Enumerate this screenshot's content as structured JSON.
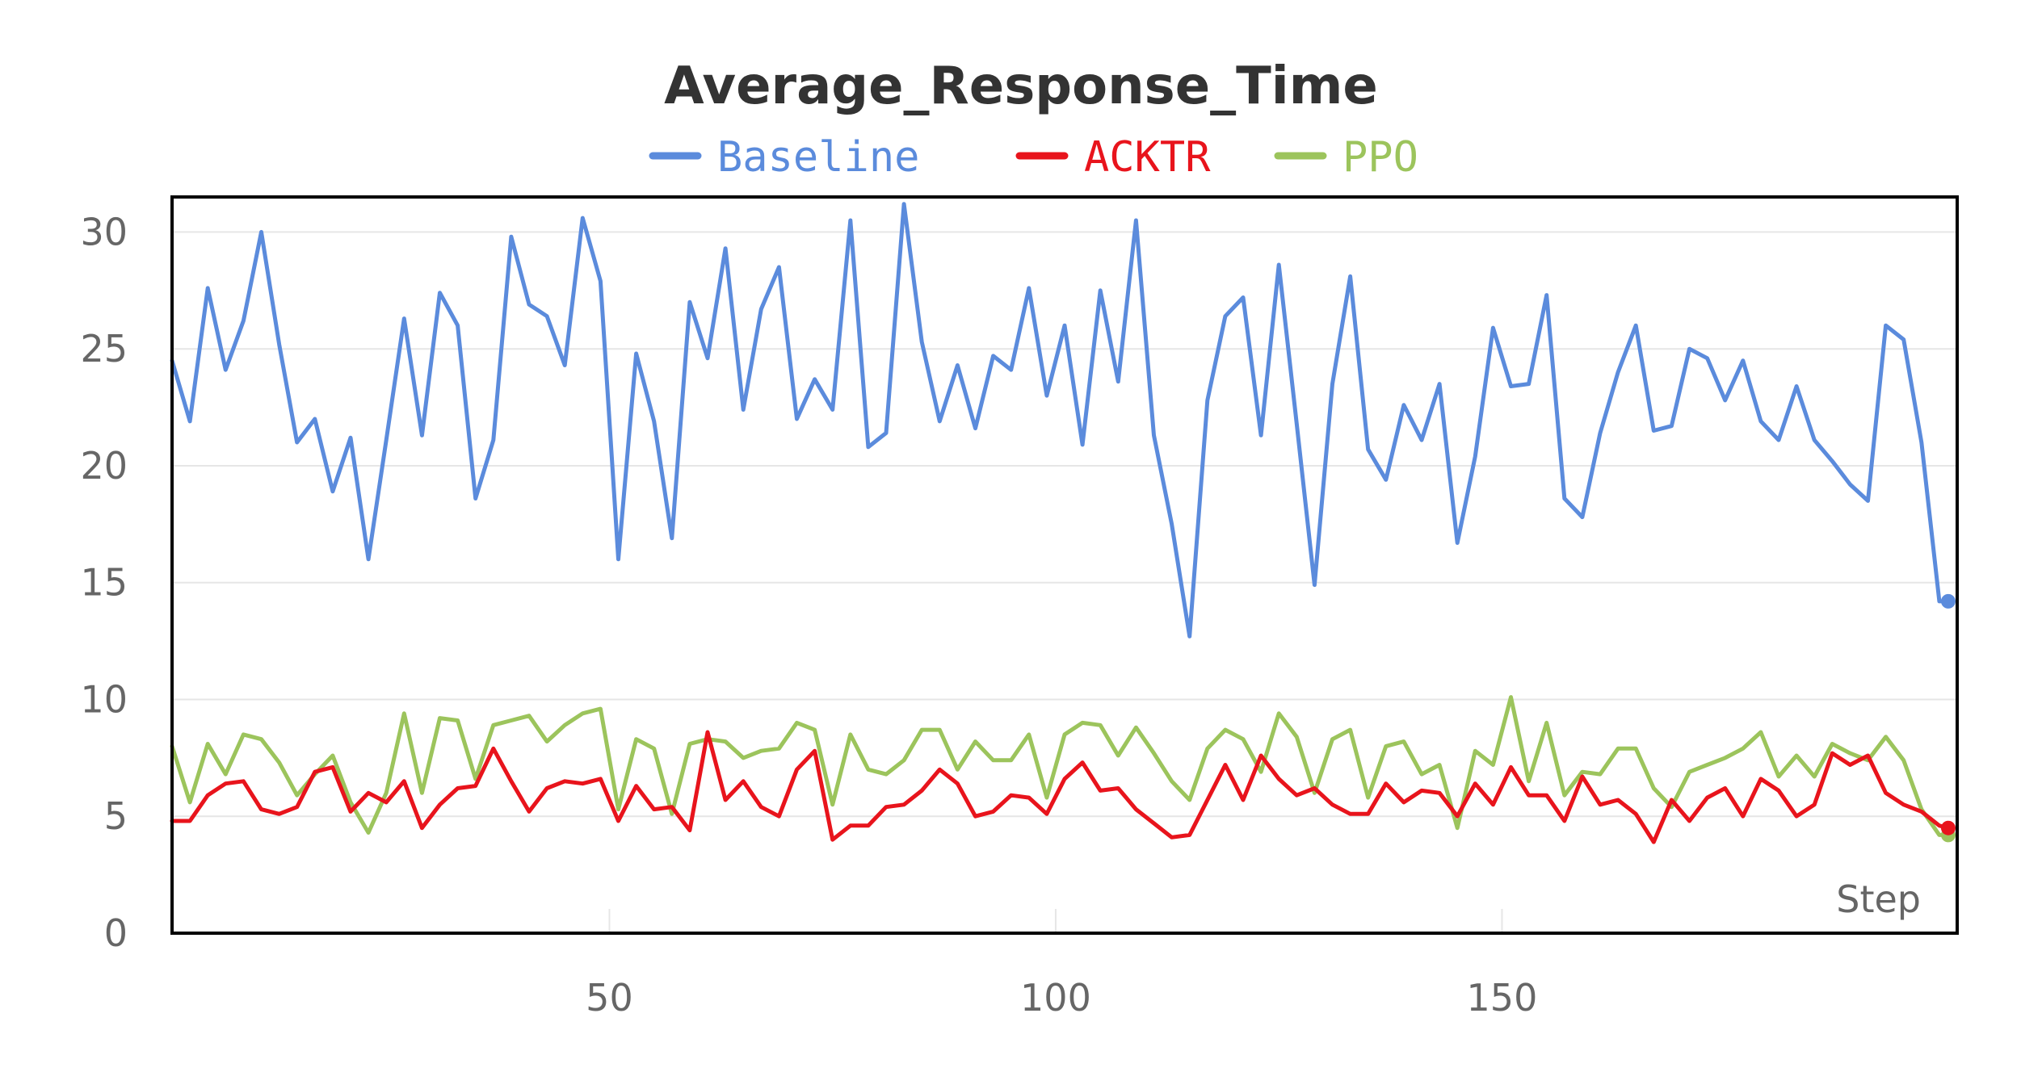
{
  "chart_data": {
    "type": "line",
    "title": "Average_Response_Time",
    "xlabel": "Step",
    "ylabel": "",
    "xlim": [
      1,
      201
    ],
    "ylim": [
      0,
      31.5
    ],
    "xticks": [
      50,
      100,
      150
    ],
    "yticks": [
      0,
      5,
      10,
      15,
      20,
      25,
      30
    ],
    "grid": true,
    "legend": "top-center",
    "series": [
      {
        "name": "Baseline",
        "color": "#5b8bdc",
        "x": [
          1,
          3,
          5,
          7,
          9,
          11,
          13,
          15,
          17,
          19,
          21,
          23,
          25,
          27,
          29,
          31,
          33,
          35,
          37,
          39,
          41,
          43,
          45,
          47,
          49,
          51,
          53,
          55,
          57,
          59,
          61,
          63,
          65,
          67,
          69,
          71,
          73,
          75,
          77,
          79,
          81,
          83,
          85,
          87,
          89,
          91,
          93,
          95,
          97,
          99,
          101,
          103,
          105,
          107,
          109,
          111,
          113,
          115,
          117,
          119,
          121,
          123,
          125,
          127,
          129,
          131,
          133,
          135,
          137,
          139,
          141,
          143,
          145,
          147,
          149,
          151,
          153,
          155,
          157,
          159,
          161,
          163,
          165,
          167,
          169,
          171,
          173,
          175,
          177,
          179,
          181,
          183,
          185,
          187,
          189,
          191,
          193,
          195,
          197,
          199,
          200
        ],
        "y": [
          24.5,
          21.9,
          27.6,
          24.1,
          26.2,
          30.0,
          25.2,
          21.0,
          22.0,
          18.9,
          21.2,
          16.0,
          21.1,
          26.3,
          21.3,
          27.4,
          26.0,
          18.6,
          21.1,
          29.8,
          26.9,
          26.4,
          24.3,
          30.6,
          27.9,
          16.0,
          24.8,
          21.9,
          16.9,
          27.0,
          24.6,
          29.3,
          22.4,
          26.7,
          28.5,
          22.0,
          23.7,
          22.4,
          30.5,
          20.8,
          21.4,
          31.2,
          25.3,
          21.9,
          24.3,
          21.6,
          24.7,
          24.1,
          27.6,
          23.0,
          26.0,
          20.9,
          27.5,
          23.6,
          30.5,
          21.3,
          17.5,
          12.7,
          22.8,
          26.4,
          27.2,
          21.3,
          28.6,
          21.8,
          14.9,
          23.5,
          28.1,
          20.7,
          19.4,
          22.6,
          21.1,
          23.5,
          16.7,
          20.4,
          25.9,
          23.4,
          23.5,
          27.3,
          18.6,
          17.8,
          21.4,
          24.0,
          26.0,
          21.5,
          21.7,
          25.0,
          24.6,
          22.8,
          24.5,
          21.9,
          21.1,
          23.4,
          21.1,
          20.2,
          19.2,
          18.5,
          26.0,
          25.4,
          21.0,
          14.2,
          14.2
        ]
      },
      {
        "name": "ACKTR",
        "color": "#e8141c",
        "x": [
          1,
          3,
          5,
          7,
          9,
          11,
          13,
          15,
          17,
          19,
          21,
          23,
          25,
          27,
          29,
          31,
          33,
          35,
          37,
          39,
          41,
          43,
          45,
          47,
          49,
          51,
          53,
          55,
          57,
          59,
          61,
          63,
          65,
          67,
          69,
          71,
          73,
          75,
          77,
          79,
          81,
          83,
          85,
          87,
          89,
          91,
          93,
          95,
          97,
          99,
          101,
          103,
          105,
          107,
          109,
          111,
          113,
          115,
          117,
          119,
          121,
          123,
          125,
          127,
          129,
          131,
          133,
          135,
          137,
          139,
          141,
          143,
          145,
          147,
          149,
          151,
          153,
          155,
          157,
          159,
          161,
          163,
          165,
          167,
          169,
          171,
          173,
          175,
          177,
          179,
          181,
          183,
          185,
          187,
          189,
          191,
          193,
          195,
          197,
          199,
          200
        ],
        "y": [
          4.8,
          4.8,
          5.9,
          6.4,
          6.5,
          5.3,
          5.1,
          5.4,
          6.9,
          7.1,
          5.2,
          6.0,
          5.6,
          6.5,
          4.5,
          5.5,
          6.2,
          6.3,
          7.9,
          6.5,
          5.2,
          6.2,
          6.5,
          6.4,
          6.6,
          4.8,
          6.3,
          5.3,
          5.4,
          4.4,
          8.6,
          5.7,
          6.5,
          5.4,
          5.0,
          7.0,
          7.8,
          4.0,
          4.6,
          4.6,
          5.4,
          5.5,
          6.1,
          7.0,
          6.4,
          5.0,
          5.2,
          5.9,
          5.8,
          5.1,
          6.6,
          7.3,
          6.1,
          6.2,
          5.3,
          4.7,
          4.1,
          4.2,
          5.7,
          7.2,
          5.7,
          7.6,
          6.6,
          5.9,
          6.2,
          5.5,
          5.1,
          5.1,
          6.4,
          5.6,
          6.1,
          6.0,
          5.0,
          6.4,
          5.5,
          7.1,
          5.9,
          5.9,
          4.8,
          6.7,
          5.5,
          5.7,
          5.1,
          3.9,
          5.7,
          4.8,
          5.8,
          6.2,
          5.0,
          6.6,
          6.1,
          5.0,
          5.5,
          7.7,
          7.2,
          7.6,
          6.0,
          5.5,
          5.2,
          4.6,
          4.5
        ]
      },
      {
        "name": "PPO",
        "color": "#9cc45c",
        "x": [
          1,
          3,
          5,
          7,
          9,
          11,
          13,
          15,
          17,
          19,
          21,
          23,
          25,
          27,
          29,
          31,
          33,
          35,
          37,
          39,
          41,
          43,
          45,
          47,
          49,
          51,
          53,
          55,
          57,
          59,
          61,
          63,
          65,
          67,
          69,
          71,
          73,
          75,
          77,
          79,
          81,
          83,
          85,
          87,
          89,
          91,
          93,
          95,
          97,
          99,
          101,
          103,
          105,
          107,
          109,
          111,
          113,
          115,
          117,
          119,
          121,
          123,
          125,
          127,
          129,
          131,
          133,
          135,
          137,
          139,
          141,
          143,
          145,
          147,
          149,
          151,
          153,
          155,
          157,
          159,
          161,
          163,
          165,
          167,
          169,
          171,
          173,
          175,
          177,
          179,
          181,
          183,
          185,
          187,
          189,
          191,
          193,
          195,
          197,
          199,
          200
        ],
        "y": [
          8.0,
          5.6,
          8.1,
          6.8,
          8.5,
          8.3,
          7.3,
          5.9,
          6.8,
          7.6,
          5.6,
          4.3,
          6.0,
          9.4,
          6.0,
          9.2,
          9.1,
          6.6,
          8.9,
          9.1,
          9.3,
          8.2,
          8.9,
          9.4,
          9.6,
          5.3,
          8.3,
          7.9,
          5.1,
          8.1,
          8.3,
          8.2,
          7.5,
          7.8,
          7.9,
          9.0,
          8.7,
          5.5,
          8.5,
          7.0,
          6.8,
          7.4,
          8.7,
          8.7,
          7.0,
          8.2,
          7.4,
          7.4,
          8.5,
          5.8,
          8.5,
          9.0,
          8.9,
          7.6,
          8.8,
          7.7,
          6.5,
          5.7,
          7.9,
          8.7,
          8.3,
          6.9,
          9.4,
          8.4,
          6.0,
          8.3,
          8.7,
          5.8,
          8.0,
          8.2,
          6.8,
          7.2,
          4.5,
          7.8,
          7.2,
          10.1,
          6.5,
          9.0,
          5.9,
          6.9,
          6.8,
          7.9,
          7.9,
          6.2,
          5.4,
          6.9,
          7.2,
          7.5,
          7.9,
          8.6,
          6.7,
          7.6,
          6.7,
          8.1,
          7.7,
          7.4,
          8.4,
          7.4,
          5.3,
          4.2,
          4.2
        ]
      }
    ]
  }
}
